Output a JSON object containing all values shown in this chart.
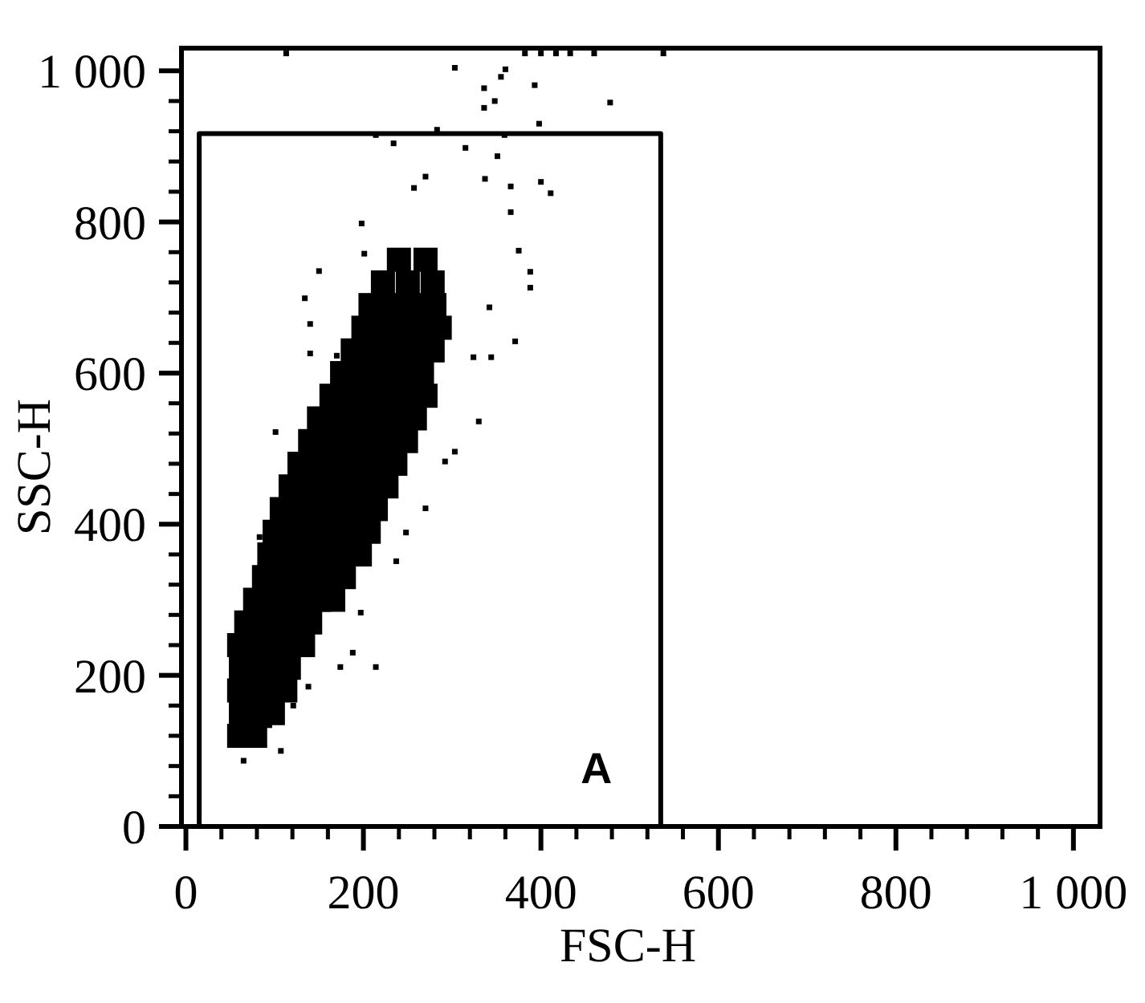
{
  "chart_data": {
    "type": "scatter",
    "xlabel": "FSC-H",
    "ylabel": "SSC-H",
    "xlim": [
      -5,
      1030
    ],
    "ylim": [
      0,
      1030
    ],
    "xticks": [
      0,
      {
        "value": 40,
        "label": null
      },
      {
        "value": 80,
        "label": null
      },
      {
        "value": 120,
        "label": null
      },
      {
        "value": 160,
        "label": null
      },
      200,
      {
        "value": 240,
        "label": null
      },
      {
        "value": 280,
        "label": null
      },
      {
        "value": 320,
        "label": null
      },
      {
        "value": 360,
        "label": null
      },
      400,
      {
        "value": 440,
        "label": null
      },
      {
        "value": 480,
        "label": null
      },
      {
        "value": 520,
        "label": null
      },
      {
        "value": 560,
        "label": null
      },
      600,
      {
        "value": 640,
        "label": null
      },
      {
        "value": 680,
        "label": null
      },
      {
        "value": 720,
        "label": null
      },
      {
        "value": 760,
        "label": null
      },
      800,
      {
        "value": 840,
        "label": null
      },
      {
        "value": 880,
        "label": null
      },
      {
        "value": 920,
        "label": null
      },
      {
        "value": 960,
        "label": null
      },
      {
        "value": 1000,
        "label": "1 000"
      }
    ],
    "yticks": [
      0,
      {
        "value": 40,
        "label": null
      },
      {
        "value": 80,
        "label": null
      },
      {
        "value": 120,
        "label": null
      },
      {
        "value": 160,
        "label": null
      },
      200,
      {
        "value": 240,
        "label": null
      },
      {
        "value": 280,
        "label": null
      },
      {
        "value": 320,
        "label": null
      },
      {
        "value": 360,
        "label": null
      },
      400,
      {
        "value": 440,
        "label": null
      },
      {
        "value": 480,
        "label": null
      },
      {
        "value": 520,
        "label": null
      },
      {
        "value": 560,
        "label": null
      },
      600,
      {
        "value": 640,
        "label": null
      },
      {
        "value": 680,
        "label": null
      },
      {
        "value": 720,
        "label": null
      },
      {
        "value": 760,
        "label": null
      },
      800,
      {
        "value": 840,
        "label": null
      },
      {
        "value": 880,
        "label": null
      },
      {
        "value": 920,
        "label": null
      },
      {
        "value": 960,
        "label": null
      },
      {
        "value": 1000,
        "label": "1 000"
      }
    ],
    "marker": "square",
    "series": [
      {
        "color": "#000000",
        "x": [
          60,
          78,
          62,
          80,
          98,
          60,
          78,
          96,
          112,
          62,
          80,
          98,
          116,
          60,
          78,
          96,
          114,
          132,
          68,
          86,
          104,
          122,
          140,
          78,
          96,
          114,
          132,
          150,
          166,
          88,
          106,
          124,
          142,
          160,
          178,
          94,
          112,
          130,
          148,
          166,
          184,
          196,
          100,
          118,
          136,
          154,
          172,
          190,
          206,
          108,
          126,
          144,
          162,
          180,
          198,
          214,
          118,
          136,
          154,
          172,
          190,
          208,
          226,
          128,
          146,
          164,
          182,
          200,
          218,
          236,
          140,
          158,
          176,
          194,
          212,
          230,
          248,
          150,
          168,
          186,
          204,
          222,
          240,
          258,
          164,
          182,
          200,
          218,
          236,
          254,
          270,
          176,
          194,
          212,
          230,
          248,
          266,
          188,
          206,
          224,
          242,
          260,
          278,
          200,
          222,
          244,
          266,
          286,
          208,
          232,
          256,
          280,
          222,
          250,
          278,
          240,
          270
        ],
        "values": [
          120,
          120,
          150,
          150,
          150,
          180,
          180,
          180,
          180,
          210,
          210,
          210,
          210,
          240,
          240,
          240,
          240,
          240,
          270,
          270,
          270,
          270,
          270,
          300,
          300,
          300,
          300,
          300,
          300,
          330,
          330,
          330,
          330,
          330,
          330,
          360,
          360,
          360,
          360,
          360,
          360,
          360,
          390,
          390,
          390,
          390,
          390,
          390,
          390,
          420,
          420,
          420,
          420,
          420,
          420,
          420,
          450,
          450,
          450,
          450,
          450,
          450,
          450,
          480,
          480,
          480,
          480,
          480,
          480,
          480,
          510,
          510,
          510,
          510,
          510,
          510,
          510,
          540,
          540,
          540,
          540,
          540,
          540,
          540,
          570,
          570,
          570,
          570,
          570,
          570,
          570,
          600,
          600,
          600,
          600,
          600,
          600,
          630,
          630,
          630,
          630,
          630,
          630,
          660,
          660,
          660,
          660,
          660,
          690,
          690,
          690,
          690,
          720,
          720,
          720,
          750,
          750
        ]
      },
      {
        "color": "#000000",
        "x": [
          65,
          107,
          94,
          121,
          138,
          174,
          214,
          188,
          197,
          237,
          248,
          270,
          292,
          303,
          330,
          101,
          83,
          324,
          344,
          371,
          342,
          388,
          388,
          375,
          366,
          366,
          337,
          400,
          411,
          351,
          315,
          270,
          257,
          234,
          214,
          283,
          359,
          398,
          336,
          348,
          336,
          355,
          360,
          393,
          478,
          303,
          113,
          382,
          400,
          417,
          433,
          460,
          538,
          150,
          134,
          198,
          201,
          140,
          140,
          170
        ],
        "values": [
          87,
          100,
          134,
          160,
          185,
          211,
          211,
          230,
          283,
          351,
          389,
          421,
          483,
          496,
          536,
          522,
          383,
          621,
          621,
          642,
          687,
          713,
          734,
          762,
          813,
          847,
          857,
          853,
          838,
          887,
          898,
          860,
          845,
          904,
          915,
          922,
          915,
          930,
          951,
          960,
          977,
          992,
          1002,
          981,
          958,
          1004,
          1023,
          1023,
          1023,
          1023,
          1023,
          1023,
          1023,
          735,
          699,
          798,
          758,
          626,
          665,
          623
        ]
      },
      {
        "type": "line",
        "color": "#000000",
        "marker": "none",
        "x": [
          15,
          15,
          535,
          535
        ],
        "values": [
          4,
          917,
          917,
          4
        ]
      }
    ],
    "annotations": [
      "A"
    ]
  }
}
